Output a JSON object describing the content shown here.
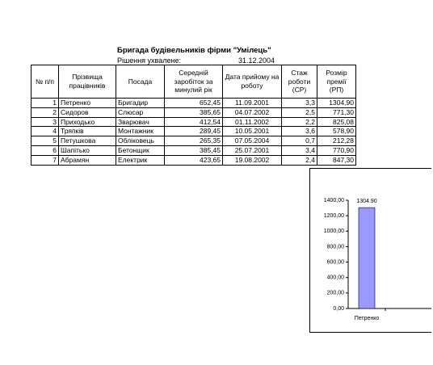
{
  "header": {
    "title": "Бригада будівельників фірми \"Умілець\"",
    "decision_label": "Рішення ухвалене:",
    "decision_date": "31.12.2004"
  },
  "table": {
    "columns": [
      "№ п/п",
      "Прізвища працівників",
      "Посада",
      "Середній заробіток за минулий рік",
      "Дата прийому на роботу",
      "Стаж роботи (СР)",
      "Розмір премії (РП)"
    ],
    "rows": [
      [
        "1",
        "Петренко",
        "Бригадир",
        "652,45",
        "11.09.2001",
        "3,3",
        "1304,90"
      ],
      [
        "2",
        "Сидоров",
        "Слюсар",
        "385,65",
        "04.07.2002",
        "2,5",
        "771,30"
      ],
      [
        "3",
        "Приходько",
        "Зварювач",
        "412,54",
        "01.11.2002",
        "2,2",
        "825,08"
      ],
      [
        "4",
        "Тряпків",
        "Монтажник",
        "289,45",
        "10.05.2001",
        "3,6",
        "578,90"
      ],
      [
        "5",
        "Петушкова",
        "Обліковець",
        "265,35",
        "07.05.2004",
        "0,7",
        "212,28"
      ],
      [
        "6",
        "Шапітько",
        "Бетонщик",
        "385,45",
        "25.07.2001",
        "3,4",
        "770,90"
      ],
      [
        "7",
        "Абрамян",
        "Електрик",
        "423,65",
        "19.08.2002",
        "2,4",
        "847,30"
      ]
    ]
  },
  "chart_data": {
    "type": "bar",
    "categories": [
      "Петренко"
    ],
    "values": [
      1304.9
    ],
    "value_labels": [
      "1304.90"
    ],
    "color": "#9999ff",
    "ylim": [
      0,
      1400
    ],
    "yticks": [
      {
        "value": 0,
        "label": "0,00"
      },
      {
        "value": 200,
        "label": "200,00"
      },
      {
        "value": 400,
        "label": "400,00"
      },
      {
        "value": 600,
        "label": "600,00"
      },
      {
        "value": 800,
        "label": "800,00"
      },
      {
        "value": 1000,
        "label": "1000,00"
      },
      {
        "value": 1200,
        "label": "1200,00"
      },
      {
        "value": 1400,
        "label": "1400,00"
      }
    ]
  }
}
